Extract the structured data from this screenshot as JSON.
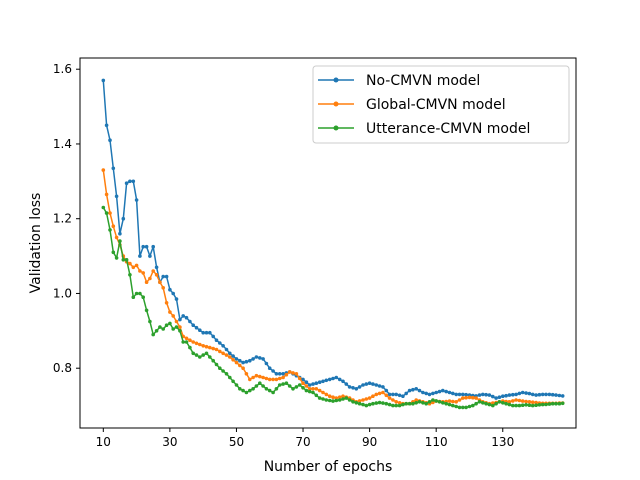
{
  "chart_data": {
    "type": "line",
    "title": "",
    "xlabel": "Number of epochs",
    "ylabel": "Validation loss",
    "xlim": [
      3,
      152
    ],
    "ylim": [
      0.64,
      1.63
    ],
    "xticks": [
      10,
      30,
      50,
      70,
      90,
      110,
      130
    ],
    "yticks": [
      0.8,
      1.0,
      1.2,
      1.4,
      1.6
    ],
    "ytick_labels": [
      "0.8",
      "1.0",
      "1.2",
      "1.4",
      "1.6"
    ],
    "legend_position": "top-right",
    "grid": false,
    "x_range": [
      10,
      148
    ],
    "series": [
      {
        "name": "No-CMVN model",
        "legend_label": "No-CMVN model",
        "color": "#1f77b4",
        "keypoints": [
          [
            10,
            1.57
          ],
          [
            11,
            1.45
          ],
          [
            12,
            1.41
          ],
          [
            13,
            1.335
          ],
          [
            14,
            1.26
          ],
          [
            15,
            1.16
          ],
          [
            16,
            1.2
          ],
          [
            17,
            1.295
          ],
          [
            18,
            1.3
          ],
          [
            19,
            1.3
          ],
          [
            20,
            1.25
          ],
          [
            21,
            1.1
          ],
          [
            22,
            1.125
          ],
          [
            23,
            1.125
          ],
          [
            24,
            1.1
          ],
          [
            25,
            1.125
          ],
          [
            26,
            1.07
          ],
          [
            27,
            1.03
          ],
          [
            28,
            1.045
          ],
          [
            29,
            1.045
          ],
          [
            30,
            1.01
          ],
          [
            31,
            1.0
          ],
          [
            32,
            0.985
          ],
          [
            33,
            0.93
          ],
          [
            34,
            0.94
          ],
          [
            35,
            0.935
          ],
          [
            37,
            0.915
          ],
          [
            40,
            0.895
          ],
          [
            42,
            0.895
          ],
          [
            44,
            0.875
          ],
          [
            46,
            0.86
          ],
          [
            48,
            0.84
          ],
          [
            50,
            0.825
          ],
          [
            52,
            0.815
          ],
          [
            54,
            0.82
          ],
          [
            56,
            0.83
          ],
          [
            58,
            0.825
          ],
          [
            60,
            0.8
          ],
          [
            62,
            0.785
          ],
          [
            64,
            0.785
          ],
          [
            66,
            0.79
          ],
          [
            68,
            0.78
          ],
          [
            70,
            0.77
          ],
          [
            72,
            0.755
          ],
          [
            74,
            0.76
          ],
          [
            76,
            0.765
          ],
          [
            78,
            0.77
          ],
          [
            80,
            0.775
          ],
          [
            82,
            0.765
          ],
          [
            84,
            0.75
          ],
          [
            86,
            0.745
          ],
          [
            88,
            0.755
          ],
          [
            90,
            0.76
          ],
          [
            92,
            0.755
          ],
          [
            94,
            0.75
          ],
          [
            96,
            0.73
          ],
          [
            98,
            0.73
          ],
          [
            100,
            0.725
          ],
          [
            102,
            0.74
          ],
          [
            104,
            0.745
          ],
          [
            106,
            0.735
          ],
          [
            108,
            0.73
          ],
          [
            110,
            0.735
          ],
          [
            112,
            0.74
          ],
          [
            114,
            0.735
          ],
          [
            116,
            0.73
          ],
          [
            118,
            0.73
          ],
          [
            120,
            0.728
          ],
          [
            122,
            0.726
          ],
          [
            124,
            0.73
          ],
          [
            126,
            0.728
          ],
          [
            128,
            0.72
          ],
          [
            130,
            0.725
          ],
          [
            132,
            0.728
          ],
          [
            134,
            0.73
          ],
          [
            136,
            0.735
          ],
          [
            138,
            0.732
          ],
          [
            140,
            0.728
          ],
          [
            142,
            0.73
          ],
          [
            144,
            0.73
          ],
          [
            146,
            0.728
          ],
          [
            148,
            0.726
          ]
        ]
      },
      {
        "name": "Global-CMVN model",
        "legend_label": "Global-CMVN model",
        "color": "#ff7f0e",
        "keypoints": [
          [
            10,
            1.33
          ],
          [
            11,
            1.265
          ],
          [
            12,
            1.215
          ],
          [
            13,
            1.18
          ],
          [
            14,
            1.15
          ],
          [
            15,
            1.13
          ],
          [
            16,
            1.1
          ],
          [
            17,
            1.085
          ],
          [
            18,
            1.08
          ],
          [
            19,
            1.07
          ],
          [
            20,
            1.075
          ],
          [
            21,
            1.06
          ],
          [
            22,
            1.055
          ],
          [
            23,
            1.03
          ],
          [
            24,
            1.04
          ],
          [
            25,
            1.06
          ],
          [
            26,
            1.05
          ],
          [
            27,
            1.03
          ],
          [
            28,
            1.015
          ],
          [
            29,
            0.975
          ],
          [
            30,
            0.95
          ],
          [
            31,
            0.94
          ],
          [
            32,
            0.925
          ],
          [
            33,
            0.91
          ],
          [
            34,
            0.885
          ],
          [
            35,
            0.88
          ],
          [
            37,
            0.87
          ],
          [
            40,
            0.86
          ],
          [
            42,
            0.855
          ],
          [
            44,
            0.85
          ],
          [
            46,
            0.84
          ],
          [
            48,
            0.83
          ],
          [
            50,
            0.815
          ],
          [
            52,
            0.8
          ],
          [
            54,
            0.77
          ],
          [
            56,
            0.78
          ],
          [
            58,
            0.775
          ],
          [
            60,
            0.77
          ],
          [
            62,
            0.77
          ],
          [
            64,
            0.775
          ],
          [
            66,
            0.79
          ],
          [
            68,
            0.785
          ],
          [
            70,
            0.76
          ],
          [
            72,
            0.745
          ],
          [
            74,
            0.745
          ],
          [
            76,
            0.735
          ],
          [
            78,
            0.725
          ],
          [
            80,
            0.72
          ],
          [
            82,
            0.725
          ],
          [
            84,
            0.72
          ],
          [
            86,
            0.71
          ],
          [
            88,
            0.715
          ],
          [
            90,
            0.72
          ],
          [
            92,
            0.73
          ],
          [
            94,
            0.735
          ],
          [
            96,
            0.72
          ],
          [
            98,
            0.71
          ],
          [
            100,
            0.705
          ],
          [
            102,
            0.705
          ],
          [
            104,
            0.715
          ],
          [
            106,
            0.71
          ],
          [
            108,
            0.705
          ],
          [
            110,
            0.712
          ],
          [
            112,
            0.71
          ],
          [
            114,
            0.712
          ],
          [
            116,
            0.71
          ],
          [
            118,
            0.72
          ],
          [
            120,
            0.722
          ],
          [
            122,
            0.72
          ],
          [
            124,
            0.71
          ],
          [
            126,
            0.705
          ],
          [
            128,
            0.708
          ],
          [
            130,
            0.712
          ],
          [
            132,
            0.71
          ],
          [
            134,
            0.715
          ],
          [
            136,
            0.712
          ],
          [
            138,
            0.71
          ],
          [
            140,
            0.708
          ],
          [
            142,
            0.706
          ],
          [
            144,
            0.706
          ],
          [
            146,
            0.706
          ],
          [
            148,
            0.707
          ]
        ]
      },
      {
        "name": "Utterance-CMVN model",
        "legend_label": "Utterance-CMVN model",
        "color": "#2ca02c",
        "keypoints": [
          [
            10,
            1.23
          ],
          [
            11,
            1.215
          ],
          [
            12,
            1.17
          ],
          [
            13,
            1.11
          ],
          [
            14,
            1.095
          ],
          [
            15,
            1.14
          ],
          [
            16,
            1.09
          ],
          [
            17,
            1.09
          ],
          [
            18,
            1.05
          ],
          [
            19,
            0.99
          ],
          [
            20,
            1.0
          ],
          [
            21,
            1.0
          ],
          [
            22,
            0.99
          ],
          [
            23,
            0.955
          ],
          [
            24,
            0.925
          ],
          [
            25,
            0.89
          ],
          [
            26,
            0.9
          ],
          [
            27,
            0.91
          ],
          [
            28,
            0.905
          ],
          [
            29,
            0.915
          ],
          [
            30,
            0.92
          ],
          [
            31,
            0.905
          ],
          [
            32,
            0.91
          ],
          [
            33,
            0.9
          ],
          [
            34,
            0.87
          ],
          [
            35,
            0.87
          ],
          [
            37,
            0.84
          ],
          [
            39,
            0.83
          ],
          [
            41,
            0.84
          ],
          [
            43,
            0.82
          ],
          [
            45,
            0.8
          ],
          [
            47,
            0.785
          ],
          [
            49,
            0.765
          ],
          [
            51,
            0.745
          ],
          [
            53,
            0.735
          ],
          [
            55,
            0.745
          ],
          [
            57,
            0.76
          ],
          [
            59,
            0.745
          ],
          [
            61,
            0.735
          ],
          [
            63,
            0.755
          ],
          [
            65,
            0.76
          ],
          [
            67,
            0.745
          ],
          [
            69,
            0.755
          ],
          [
            71,
            0.74
          ],
          [
            73,
            0.735
          ],
          [
            75,
            0.72
          ],
          [
            77,
            0.715
          ],
          [
            79,
            0.712
          ],
          [
            81,
            0.715
          ],
          [
            83,
            0.72
          ],
          [
            85,
            0.71
          ],
          [
            87,
            0.705
          ],
          [
            89,
            0.7
          ],
          [
            91,
            0.705
          ],
          [
            93,
            0.708
          ],
          [
            95,
            0.705
          ],
          [
            97,
            0.7
          ],
          [
            99,
            0.7
          ],
          [
            101,
            0.705
          ],
          [
            103,
            0.705
          ],
          [
            105,
            0.71
          ],
          [
            107,
            0.705
          ],
          [
            109,
            0.715
          ],
          [
            111,
            0.71
          ],
          [
            113,
            0.705
          ],
          [
            115,
            0.7
          ],
          [
            117,
            0.695
          ],
          [
            119,
            0.695
          ],
          [
            121,
            0.7
          ],
          [
            123,
            0.71
          ],
          [
            125,
            0.705
          ],
          [
            127,
            0.7
          ],
          [
            129,
            0.71
          ],
          [
            131,
            0.705
          ],
          [
            133,
            0.7
          ],
          [
            135,
            0.7
          ],
          [
            137,
            0.702
          ],
          [
            139,
            0.7
          ],
          [
            141,
            0.702
          ],
          [
            143,
            0.703
          ],
          [
            145,
            0.705
          ],
          [
            147,
            0.705
          ],
          [
            148,
            0.706
          ]
        ]
      }
    ]
  }
}
